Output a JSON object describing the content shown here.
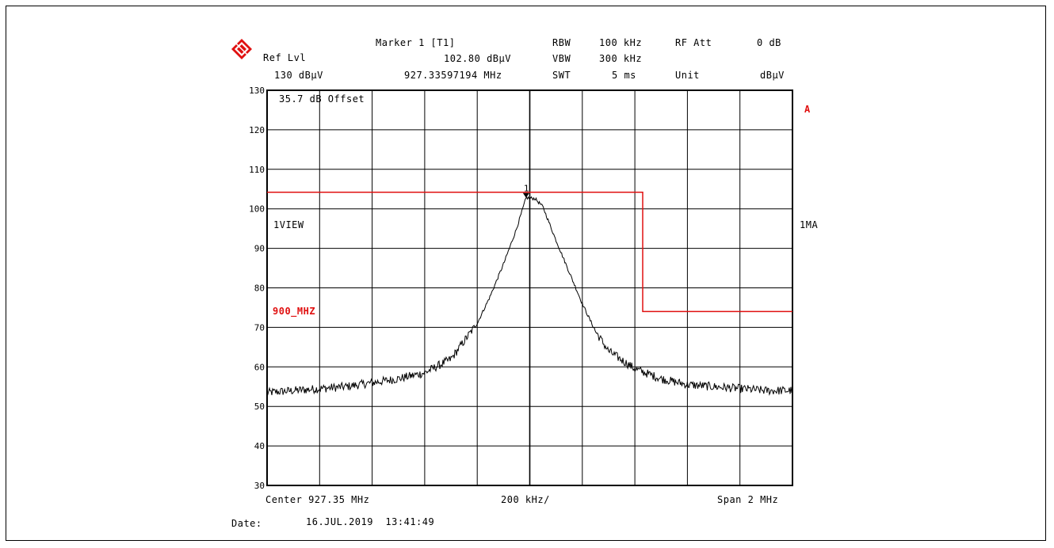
{
  "header": {
    "marker_title": "Marker 1 [T1]",
    "marker_level": "102.80 dBµV",
    "marker_freq": "927.33597194 MHz",
    "ref_lvl_label": "Ref Lvl",
    "ref_lvl_value": "130 dBµV",
    "rbw_label": "RBW",
    "rbw_value": "100 kHz",
    "vbw_label": "VBW",
    "vbw_value": "300 kHz",
    "swt_label": "SWT",
    "swt_value": "5 ms",
    "rf_att_label": "RF Att",
    "rf_att_value": "0 dB",
    "unit_label": "Unit",
    "unit_value": "dBµV"
  },
  "annotations": {
    "offset": "35.7 dB Offset",
    "view": "1VIEW",
    "limit_name": "900_MHZ",
    "trace_a": "A",
    "trace_mode": "1MA",
    "marker_number": "1"
  },
  "footer": {
    "center": "Center 927.35 MHz",
    "per_div": "200 kHz/",
    "span": "Span 2 MHz",
    "date_label": "Date:",
    "date_value": "16.JUL.2019  13:41:49"
  },
  "colors": {
    "limit_line": "#e01010",
    "trace": "#000000",
    "grid": "#000000"
  },
  "chart_data": {
    "type": "line",
    "x_unit": "MHz",
    "y_unit": "dBµV",
    "xlim": [
      926.35,
      928.35
    ],
    "ylim": [
      30,
      130
    ],
    "y_ticks": [
      130,
      120,
      110,
      100,
      90,
      80,
      70,
      60,
      50,
      40,
      30
    ],
    "x_divisions": 10,
    "grid": true,
    "center_freq": 927.35,
    "span": 2,
    "series": [
      {
        "name": "1MA",
        "x": [
          926.35,
          926.45,
          926.55,
          926.65,
          926.75,
          926.85,
          926.95,
          927.05,
          927.15,
          927.2,
          927.25,
          927.3,
          927.336,
          927.37,
          927.4,
          927.45,
          927.5,
          927.55,
          927.6,
          927.65,
          927.75,
          927.85,
          927.95,
          928.05,
          928.15,
          928.25,
          928.35
        ],
        "y": [
          53.5,
          54,
          54.5,
          55,
          56,
          57,
          58.5,
          62,
          71,
          78,
          86,
          95,
          102.8,
          102.6,
          100.5,
          92,
          84,
          76,
          69,
          64,
          59.5,
          57,
          55.5,
          55,
          54.5,
          54,
          54
        ]
      }
    ],
    "limit_line": {
      "name": "900_MHZ",
      "points": [
        [
          926.35,
          104.2
        ],
        [
          927.78,
          104.2
        ],
        [
          927.78,
          74
        ],
        [
          928.35,
          74
        ]
      ]
    },
    "marker": {
      "label": "1",
      "x": 927.33597194,
      "y": 102.8
    }
  }
}
